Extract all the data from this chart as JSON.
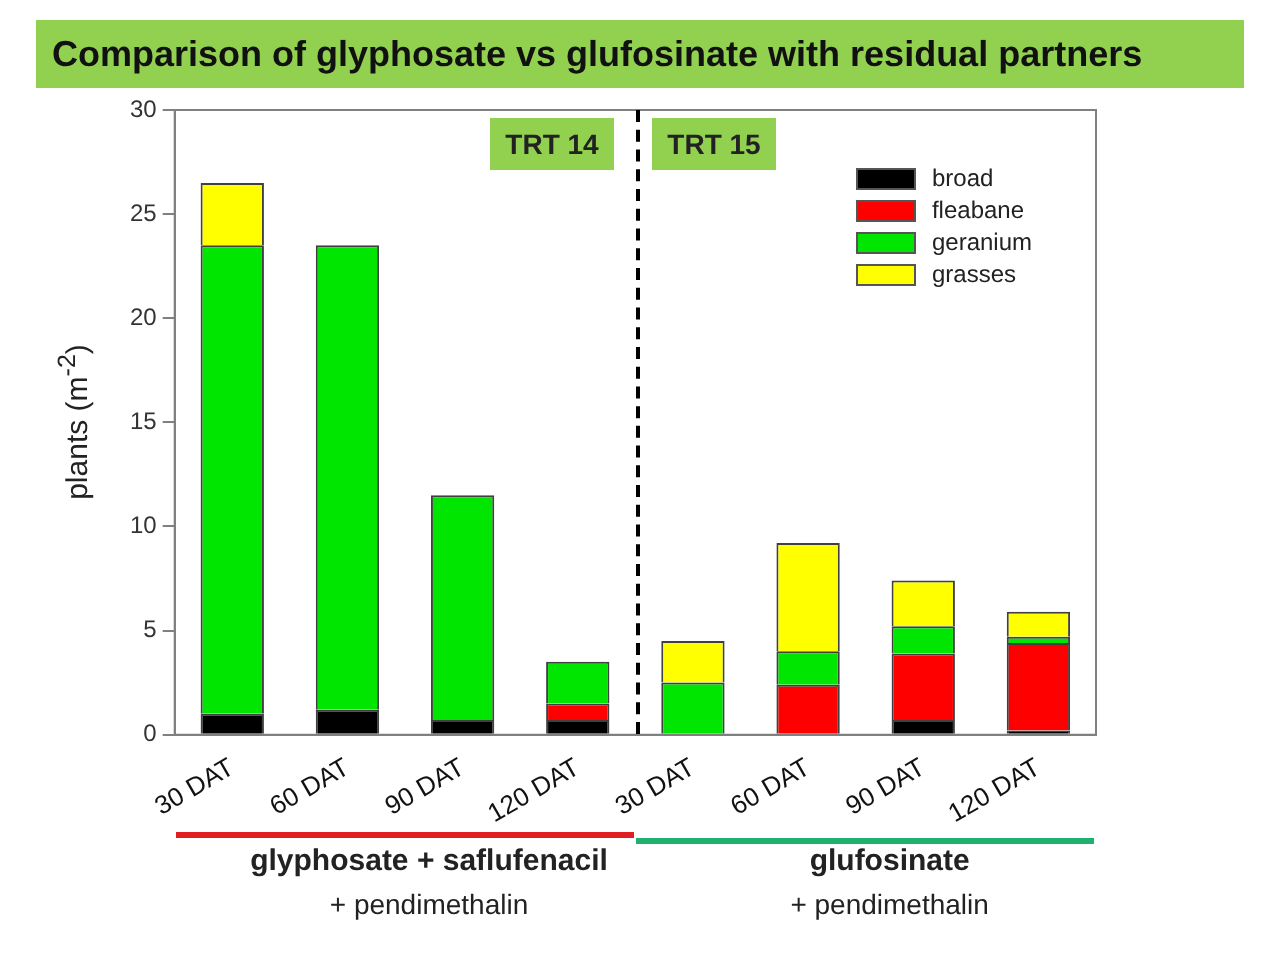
{
  "chart_data": {
    "type": "bar",
    "stacked": true,
    "title": "Comparison of glyphosate vs glufosinate with residual partners",
    "ylabel": "plants (m$^{-2}$)",
    "categories": [
      "30 DAT",
      "60 DAT",
      "90 DAT",
      "120 DAT",
      "30 DAT",
      "60 DAT",
      "90 DAT",
      "120 DAT"
    ],
    "series": [
      {
        "name": "broad",
        "color": "#000000",
        "values": [
          1.0,
          1.2,
          0.7,
          0.7,
          0,
          0,
          0.7,
          0.2
        ]
      },
      {
        "name": "fleabane",
        "color": "#ff0000",
        "values": [
          0,
          0,
          0,
          0.8,
          0,
          2.4,
          3.2,
          4.2
        ]
      },
      {
        "name": "geranium",
        "color": "#00e600",
        "values": [
          22.5,
          22.3,
          10.8,
          2.0,
          2.5,
          1.6,
          1.3,
          0.3
        ]
      },
      {
        "name": "grasses",
        "color": "#ffff00",
        "values": [
          3.0,
          0,
          0,
          0,
          2.0,
          5.2,
          2.2,
          1.2
        ]
      }
    ],
    "ylim": [
      0,
      30
    ],
    "yticks": [
      0,
      5,
      10,
      15,
      20,
      25,
      30
    ],
    "grid": false,
    "legend": "top right",
    "annotations": [
      "TRT 14",
      "TRT 15",
      "glyphosate + saflufenacil",
      "+ pendimethalin",
      "glufosinate",
      "+ pendimethalin"
    ]
  }
}
